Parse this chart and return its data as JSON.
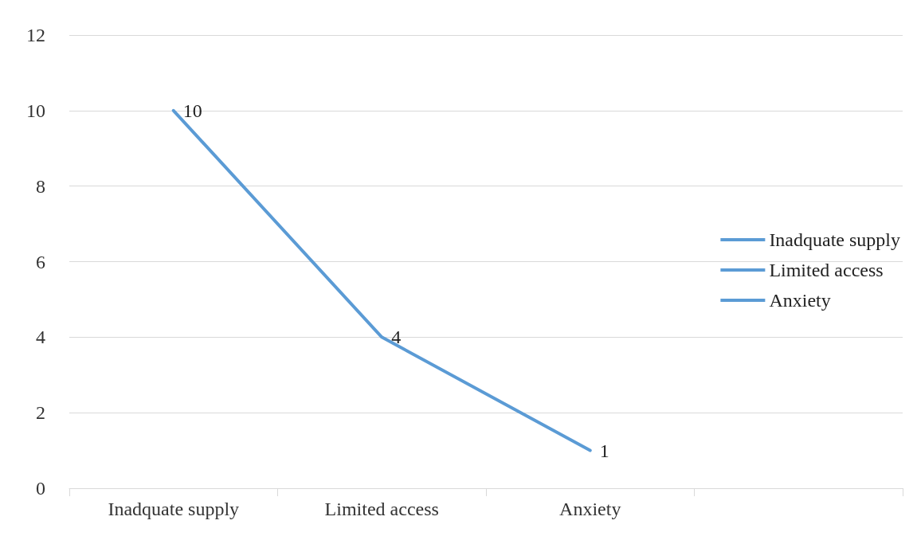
{
  "chart_data": {
    "type": "line",
    "categories": [
      "Inadquate supply",
      "Limited access",
      "Anxiety",
      null
    ],
    "series": [
      {
        "name": "Inadquate supply",
        "color": "#5b9bd5",
        "values": [
          10,
          4,
          1,
          null
        ]
      },
      {
        "name": "Limited access",
        "color": "#5b9bd5",
        "values": [
          null,
          null,
          null,
          null
        ]
      },
      {
        "name": "Anxiety",
        "color": "#5b9bd5",
        "values": [
          null,
          null,
          null,
          null
        ]
      }
    ],
    "ylim": [
      0,
      12
    ],
    "yticks": [
      0,
      2,
      4,
      6,
      8,
      10,
      12
    ],
    "grid": "y",
    "legend": "right",
    "marker": "none",
    "line_style": "solid",
    "data_labels": true
  }
}
